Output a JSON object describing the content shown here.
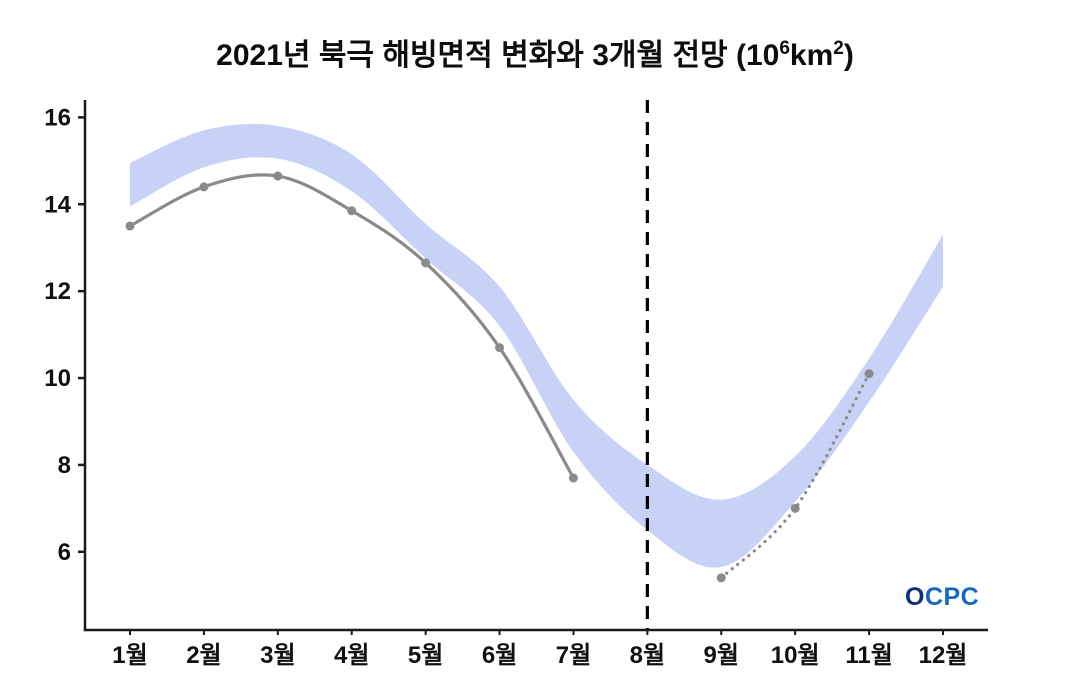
{
  "title": {
    "part1": "2021년 북극 해빙면적 변화와 3개월 전망 (10",
    "sup1": "6",
    "part2": "km",
    "sup2": "2",
    "part3": ")"
  },
  "logo": {
    "text": "OCPC"
  },
  "chart_data": {
    "type": "line",
    "title": "2021년 북극 해빙면적 변화와 3개월 전망 (10⁶km²)",
    "categories": [
      "1월",
      "2월",
      "3월",
      "4월",
      "5월",
      "6월",
      "7월",
      "8월",
      "9월",
      "10월",
      "11월",
      "12월"
    ],
    "xlabel": "",
    "ylabel": "",
    "ylim": [
      4.2,
      16.4
    ],
    "yticks": [
      6,
      8,
      10,
      12,
      14,
      16
    ],
    "grid": false,
    "legend": "none",
    "band": {
      "name": "climatology-range-band",
      "color": "#c7d2f6",
      "upper": [
        14.95,
        15.7,
        15.8,
        15.15,
        13.55,
        12.1,
        9.5,
        8.0,
        7.2,
        8.2,
        10.45,
        13.3
      ],
      "lower": [
        13.95,
        14.85,
        15.05,
        14.3,
        12.75,
        11.2,
        8.3,
        6.5,
        5.65,
        7.15,
        9.45,
        12.1
      ]
    },
    "series": [
      {
        "name": "observed-2021",
        "style": "solid",
        "color": "#8a8a8a",
        "months": [
          1,
          2,
          3,
          4,
          5,
          6,
          7
        ],
        "values": [
          13.5,
          14.4,
          14.65,
          13.85,
          12.65,
          10.7,
          7.7
        ]
      },
      {
        "name": "forecast-3month",
        "style": "dotted",
        "color": "#8a8a8a",
        "months": [
          9,
          10,
          11
        ],
        "values": [
          5.4,
          7.0,
          10.1
        ]
      }
    ],
    "vline": {
      "month": 8,
      "style": "dashed",
      "color": "#000000"
    }
  }
}
